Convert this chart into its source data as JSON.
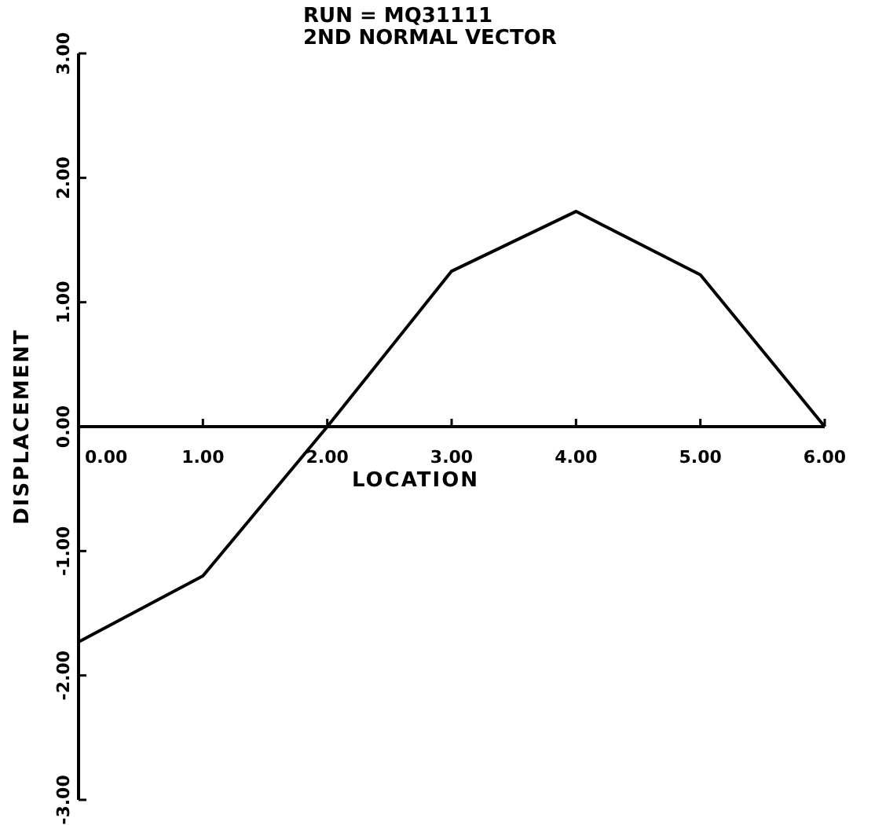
{
  "chart_data": {
    "type": "line",
    "title": "RUN = MQ31111",
    "subtitle": "2ND NORMAL VECTOR",
    "xlabel": "LOCATION",
    "ylabel": "DISPLACEMENT",
    "x": [
      0,
      1,
      2,
      3,
      4,
      5,
      6
    ],
    "series": [
      {
        "color": "#000000",
        "values": [
          -1.73,
          -1.2,
          0,
          1.25,
          1.73,
          1.22,
          0
        ]
      }
    ],
    "xlim": [
      0,
      6
    ],
    "ylim": [
      -3,
      3
    ],
    "xticks": [
      {
        "value": 0,
        "label": "0.00"
      },
      {
        "value": 1,
        "label": "1.00"
      },
      {
        "value": 2,
        "label": "2.00"
      },
      {
        "value": 3,
        "label": "3.00"
      },
      {
        "value": 4,
        "label": "4.00"
      },
      {
        "value": 5,
        "label": "5.00"
      },
      {
        "value": 6,
        "label": "6.00"
      }
    ],
    "yticks": [
      {
        "value": -3,
        "label": "-3.00"
      },
      {
        "value": -2,
        "label": "-2.00"
      },
      {
        "value": -1,
        "label": "-1.00"
      },
      {
        "value": 0,
        "label": "0.00"
      },
      {
        "value": 1,
        "label": "1.00"
      },
      {
        "value": 2,
        "label": "2.00"
      },
      {
        "value": 3,
        "label": "3.00"
      }
    ],
    "grid": false,
    "marker": "none",
    "line_style": "solid"
  }
}
